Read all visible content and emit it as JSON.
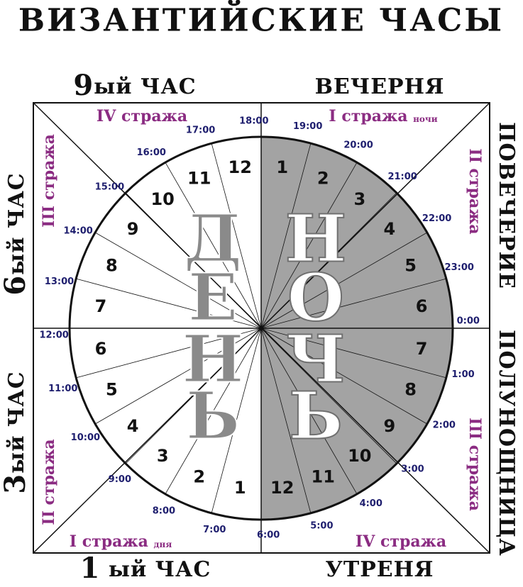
{
  "title": "ВИЗАНТИЙСКИЕ ЧАСЫ",
  "services": {
    "top_left": {
      "number": "9",
      "text": "ый ЧАС"
    },
    "top_right": "ВЕЧЕРНЯ",
    "bottom_left": {
      "number": "1",
      "text": " ый ЧАС"
    },
    "bottom_right": "УТРЕНЯ",
    "left_top": {
      "number": "6",
      "text": "ый ЧАС"
    },
    "left_bottom": {
      "number": "3",
      "text": "ый ЧАС"
    },
    "right_top": "ПОВЕЧЕРИЕ",
    "right_bottom": "ПОЛУНОЩНИЦА"
  },
  "watches": {
    "day": [
      {
        "label": "I стража",
        "note": "дня"
      },
      "II стража",
      "III стража",
      "IV стража"
    ],
    "night": [
      {
        "label": "I стража",
        "note": "ночи"
      },
      "II стража",
      "III стража",
      "IV стража"
    ]
  },
  "day": {
    "word": [
      "Д",
      "Е",
      "Н",
      "Ь"
    ],
    "hours": [
      1,
      2,
      3,
      4,
      5,
      6,
      7,
      8,
      9,
      10,
      11,
      12
    ],
    "times": [
      "7:00",
      "8:00",
      "9:00",
      "10:00",
      "11:00",
      "12:00",
      "13:00",
      "14:00",
      "15:00",
      "16:00",
      "17:00",
      "18:00"
    ]
  },
  "night": {
    "word": [
      "Н",
      "О",
      "Ч",
      "Ь"
    ],
    "hours": [
      1,
      2,
      3,
      4,
      5,
      6,
      7,
      8,
      9,
      10,
      11,
      12
    ],
    "times": [
      "19:00",
      "20:00",
      "21:00",
      "22:00",
      "23:00",
      "0:00",
      "1:00",
      "2:00",
      "3:00",
      "4:00",
      "5:00",
      "6:00"
    ]
  }
}
